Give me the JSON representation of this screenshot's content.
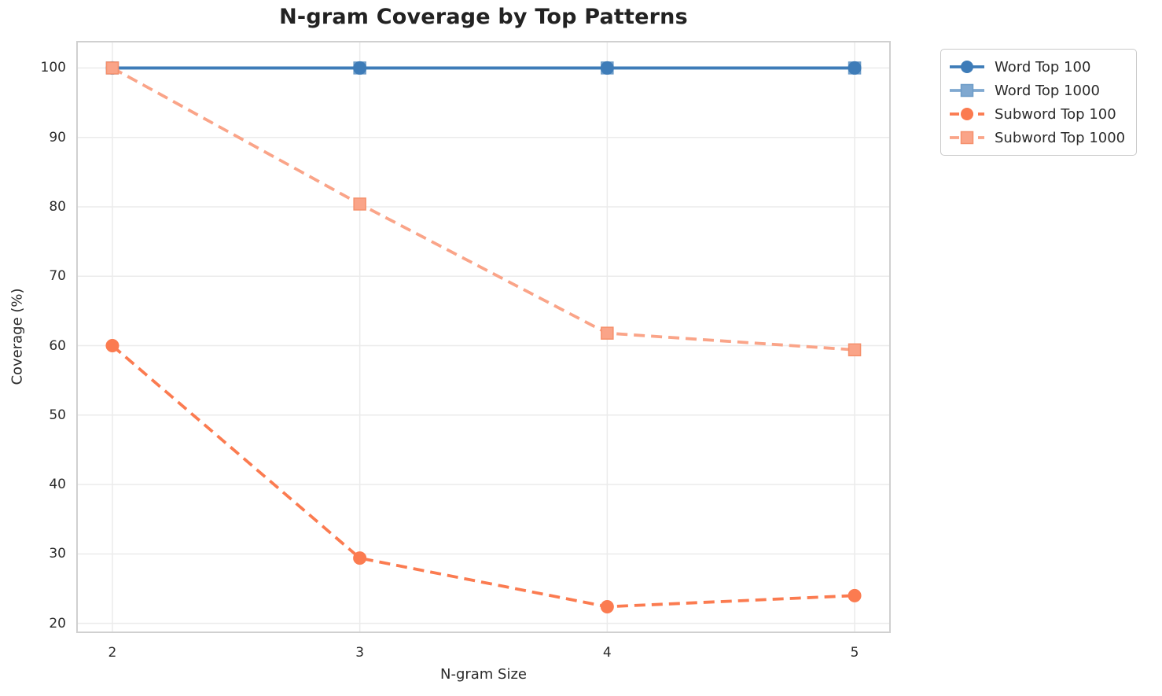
{
  "title": "N-gram Coverage by Top Patterns",
  "colors": {
    "background": "#ffffff",
    "text": "#2b2b2b",
    "grid": "#ebebeb",
    "spine": "#d0d0d0",
    "word_top_100": "#3e7cb8",
    "word_top_1000": "#7fa8d0",
    "subword_top_100": "#fb7b50",
    "subword_top_1000": "#faa488"
  },
  "chart_data": {
    "type": "line",
    "title": "N-gram Coverage by Top Patterns",
    "xlabel": "N-gram Size",
    "ylabel": "Coverage (%)",
    "x": [
      2,
      3,
      4,
      5
    ],
    "x_ticks": [
      "2",
      "3",
      "4",
      "5"
    ],
    "y_ticks": [
      20,
      30,
      40,
      50,
      60,
      70,
      80,
      90,
      100
    ],
    "xlim": [
      1.854,
      5.146
    ],
    "ylim": [
      18.6,
      103.9
    ],
    "grid": true,
    "legend_position": "outside upper right",
    "series": [
      {
        "name": "Word Top 100",
        "values": [
          100.0,
          100.0,
          100.0,
          100.0
        ],
        "color": "#3e7cb8",
        "edge_color": "#3e7cb8",
        "line_style": "solid",
        "marker": "circle",
        "z": 2
      },
      {
        "name": "Word Top 1000",
        "values": [
          100.0,
          100.0,
          100.0,
          100.0
        ],
        "color": "#7fa8d0",
        "edge_color": "#6d9cc8",
        "line_style": "solid",
        "marker": "square",
        "z": 1
      },
      {
        "name": "Subword Top 100",
        "values": [
          60.0,
          29.4,
          22.4,
          24.0
        ],
        "color": "#fb7b50",
        "edge_color": "#fb7b50",
        "line_style": "dashed",
        "marker": "circle",
        "z": 4
      },
      {
        "name": "Subword Top 1000",
        "values": [
          100.0,
          80.4,
          61.8,
          59.4
        ],
        "color": "#faa488",
        "edge_color": "#f5906c",
        "line_style": "dashed",
        "marker": "square",
        "z": 3
      }
    ]
  }
}
